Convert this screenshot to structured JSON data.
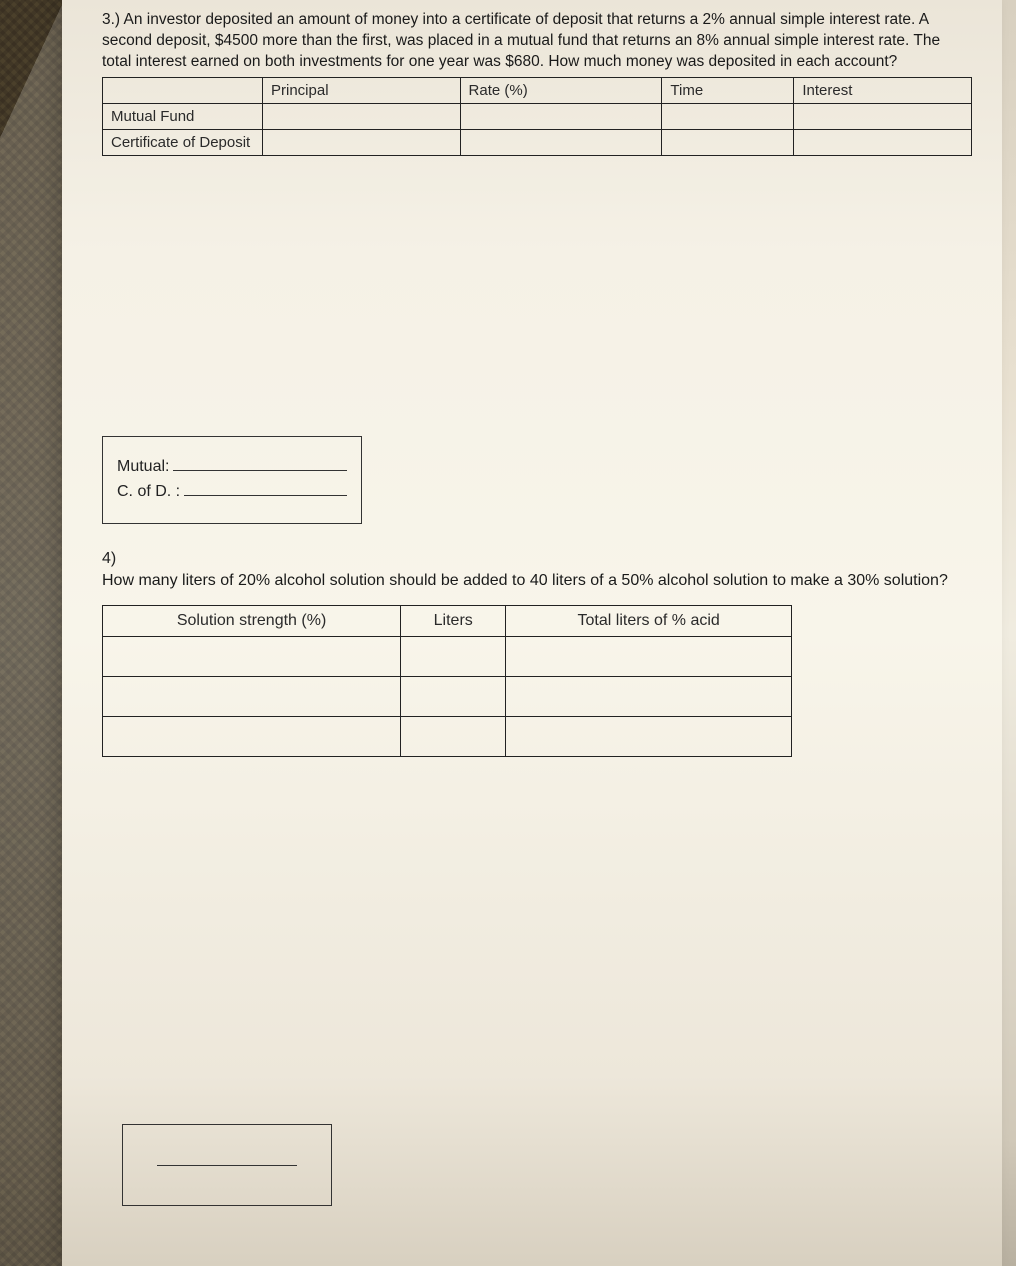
{
  "q3": {
    "number": "3.)",
    "text": "An investor deposited an amount of money into a certificate of deposit that returns a 2% annual simple interest rate. A second deposit, $4500 more than the first, was placed in a mutual fund that returns an 8% annual simple interest rate. The total interest earned on both investments for one year was $680. How much money was deposited in each account?",
    "table": {
      "headers": [
        "Principal",
        "Rate (%)",
        "Time",
        "Interest"
      ],
      "rows": [
        {
          "label": "Mutual Fund",
          "cells": [
            "",
            "",
            "",
            ""
          ]
        },
        {
          "label": "Certificate of Deposit",
          "cells": [
            "",
            "",
            "",
            ""
          ]
        }
      ]
    },
    "answer_box": {
      "line1_label": "Mutual:",
      "line2_label": "C. of D. :"
    }
  },
  "q4": {
    "number": "4)",
    "text": "How many liters of 20% alcohol solution should be added to 40 liters of a 50% alcohol solution to make a 30% solution?",
    "table": {
      "headers": [
        "Solution strength (%)",
        "Liters",
        "Total liters of % acid"
      ],
      "row_count": 3
    }
  },
  "colors": {
    "text": "#1a1a1a",
    "border": "#222222",
    "paper_bg_top": "#ebe5d8",
    "paper_bg_mid": "#f8f5ea",
    "paper_bg_bottom": "#d8d0c0"
  },
  "typography": {
    "body_family": "Arial, Helvetica, sans-serif",
    "q3_fontsize": 15.5,
    "q4_fontsize": 16,
    "table_fontsize": 15
  }
}
